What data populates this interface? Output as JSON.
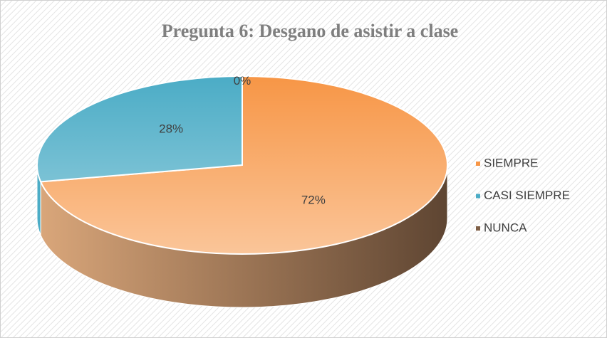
{
  "chart_data": {
    "type": "pie",
    "title": "Pregunta 6: Desgano de asistir a clase",
    "categories": [
      "SIEMPRE",
      "CASI SIEMPRE",
      "NUNCA"
    ],
    "values": [
      72,
      28,
      0
    ],
    "value_labels": [
      "72%",
      "28%",
      "0%"
    ],
    "colors": [
      "#f79646",
      "#4bacc6",
      "#7f5f46"
    ],
    "legend": "right"
  }
}
